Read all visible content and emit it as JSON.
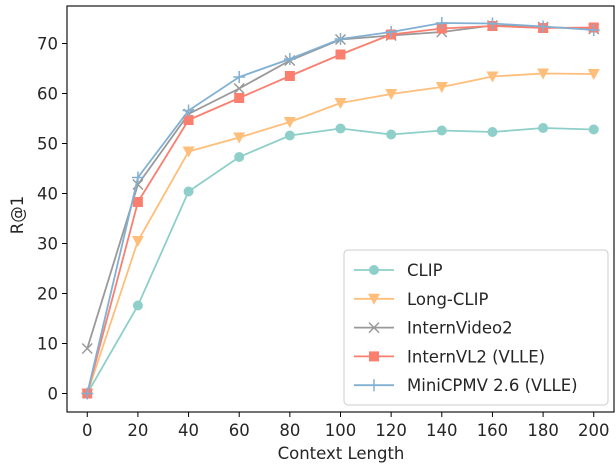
{
  "chart_data": {
    "type": "line",
    "xlabel": "Context Length",
    "ylabel": "R@1",
    "xlim": [
      -8,
      208
    ],
    "ylim": [
      -3.7,
      77.5
    ],
    "x": [
      0,
      20,
      40,
      60,
      80,
      100,
      120,
      140,
      160,
      180,
      200
    ],
    "xticks": [
      "0",
      "20",
      "40",
      "60",
      "80",
      "100",
      "120",
      "140",
      "160",
      "180",
      "200"
    ],
    "yticks": [
      "0",
      "10",
      "20",
      "30",
      "40",
      "50",
      "60",
      "70"
    ],
    "legend_position": "lower right",
    "grid": false,
    "series": [
      {
        "name": "CLIP",
        "color": "#8ecfc9",
        "marker": "circle",
        "values": [
          0,
          17.6,
          40.4,
          47.3,
          51.6,
          53.0,
          51.8,
          52.6,
          52.3,
          53.1,
          52.8
        ]
      },
      {
        "name": "Long-CLIP",
        "color": "#ffbe7a",
        "marker": "triangle-down",
        "values": [
          0,
          30.5,
          48.4,
          51.2,
          54.3,
          58.1,
          59.9,
          61.3,
          63.4,
          64.0,
          63.9
        ]
      },
      {
        "name": "InternVideo2",
        "color": "#999999",
        "marker": "x",
        "values": [
          9.0,
          41.8,
          55.9,
          61.0,
          66.6,
          70.8,
          71.6,
          72.3,
          73.6,
          73.3,
          72.9
        ]
      },
      {
        "name": "InternVL2 (VLLE)",
        "color": "#fa7f6f",
        "marker": "square",
        "values": [
          0,
          38.3,
          54.7,
          59.1,
          63.5,
          67.8,
          71.8,
          73.0,
          73.5,
          73.1,
          73.2
        ]
      },
      {
        "name": "MiniCPMV 2.6 (VLLE)",
        "color": "#82b0d2",
        "marker": "plus",
        "values": [
          0,
          43.2,
          56.6,
          63.3,
          66.9,
          70.9,
          72.3,
          74.1,
          74.0,
          73.4,
          72.7
        ]
      }
    ]
  }
}
